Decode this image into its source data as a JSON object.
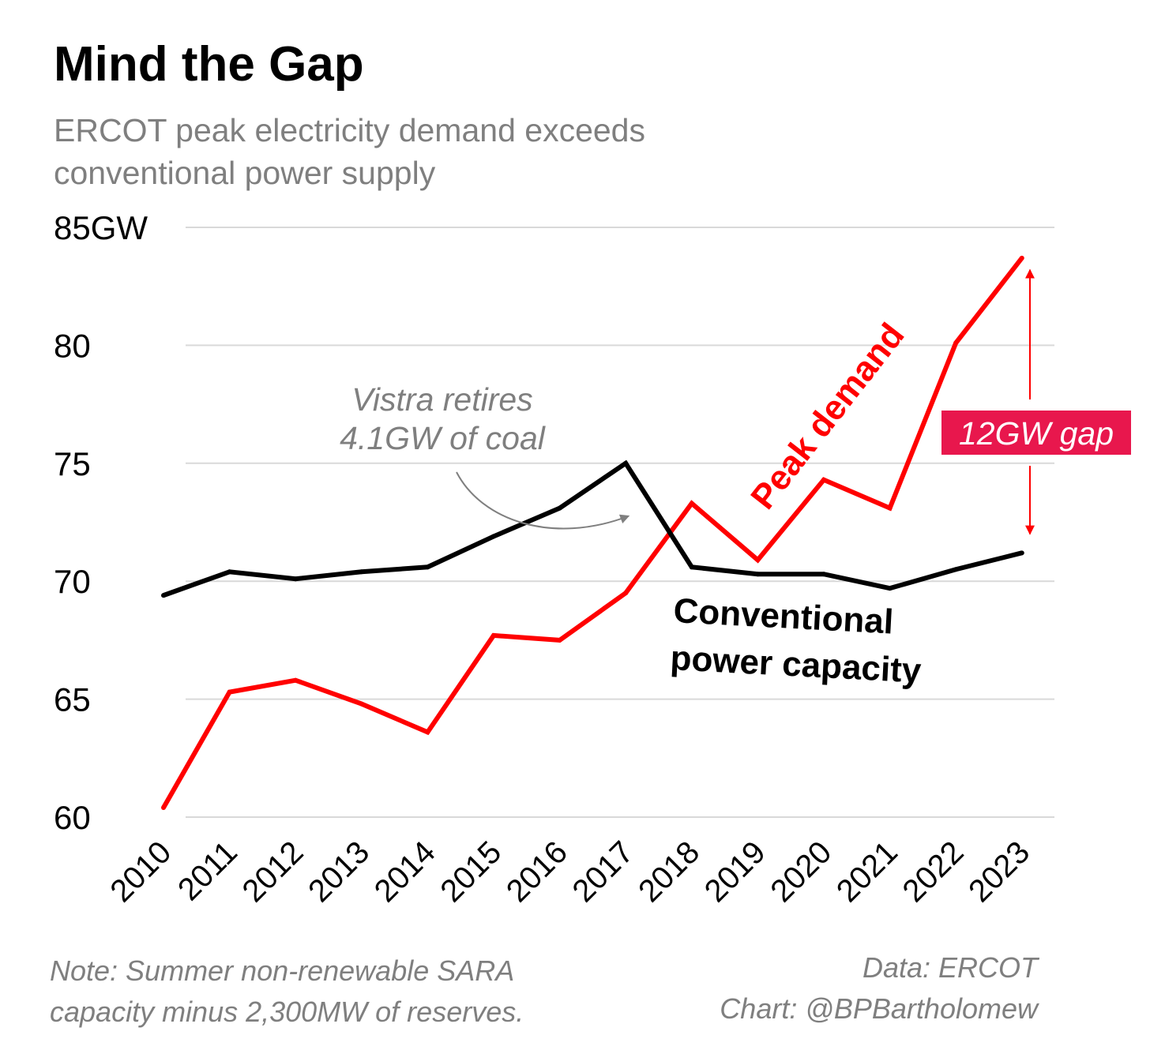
{
  "title": "Mind the Gap",
  "subtitle_lines": [
    "ERCOT peak electricity demand exceeds",
    "conventional power supply"
  ],
  "note_lines": [
    "Note: Summer non-renewable SARA",
    "capacity minus 2,300MW of reserves."
  ],
  "credit_lines": [
    "Data: ERCOT",
    "Chart: @BPBartholomew"
  ],
  "chart_data": {
    "type": "line",
    "x": [
      2010,
      2011,
      2012,
      2013,
      2014,
      2015,
      2016,
      2017,
      2018,
      2019,
      2020,
      2021,
      2022,
      2023
    ],
    "x_tick_labels": [
      "2010",
      "2011",
      "2012",
      "2013",
      "2014",
      "2015",
      "2016",
      "2017",
      "2018",
      "2019",
      "2020",
      "2021",
      "2022",
      "2023"
    ],
    "ylim": [
      60,
      85
    ],
    "y_ticks": [
      60,
      65,
      70,
      75,
      80,
      85
    ],
    "y_tick_labels": [
      "60",
      "65",
      "70",
      "75",
      "80",
      "85GW"
    ],
    "grid": true,
    "series": [
      {
        "name": "Peak demand",
        "color": "#ff0000",
        "values": [
          60.4,
          65.3,
          65.8,
          64.8,
          63.6,
          67.7,
          67.5,
          69.5,
          73.3,
          70.9,
          74.3,
          73.1,
          80.1,
          83.7
        ]
      },
      {
        "name": "Conventional power capacity",
        "name_lines": [
          "Conventional",
          "power capacity"
        ],
        "color": "#000000",
        "values": [
          69.4,
          70.4,
          70.1,
          70.4,
          70.6,
          71.9,
          73.1,
          75.0,
          70.6,
          70.3,
          70.3,
          69.7,
          70.5,
          71.2
        ]
      }
    ],
    "annotations": {
      "retire_lines": [
        "Vistra retires",
        "4.1GW of coal"
      ],
      "retire_color": "#7f7f7f",
      "gap_label": "12GW gap",
      "gap_color": "#ff0000",
      "gap_box_color": "#e8174d",
      "gap_from": 83.2,
      "gap_to": 72.0
    }
  }
}
